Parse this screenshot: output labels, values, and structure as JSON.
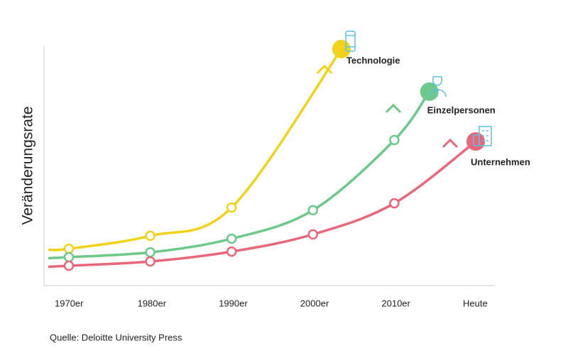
{
  "chart_data": {
    "type": "line",
    "y_label": "Veränderungsrate",
    "categories": [
      "1970er",
      "1980er",
      "1990er",
      "2000er",
      "2010er",
      "Heute"
    ],
    "ylim": [
      0,
      100
    ],
    "series": [
      {
        "name": "Technologie",
        "color": "#f2d31b",
        "values": [
          15.4,
          20.8,
          32.6,
          null,
          null,
          null
        ],
        "end_point": {
          "x": 3.35,
          "value": 98.8
        }
      },
      {
        "name": "Einzelpersonen",
        "color": "#6cc98a",
        "values": [
          11.9,
          13.9,
          19.6,
          31.5,
          60.8,
          null
        ],
        "end_point": {
          "x": 4.43,
          "value": 81
        }
      },
      {
        "name": "Unternehmen",
        "color": "#e9677a",
        "values": [
          8.3,
          10.1,
          14.2,
          21.4,
          34.4,
          null
        ],
        "end_point": {
          "x": 5,
          "value": 60.2
        }
      }
    ],
    "source": "Quelle: Deloitte University Press"
  }
}
